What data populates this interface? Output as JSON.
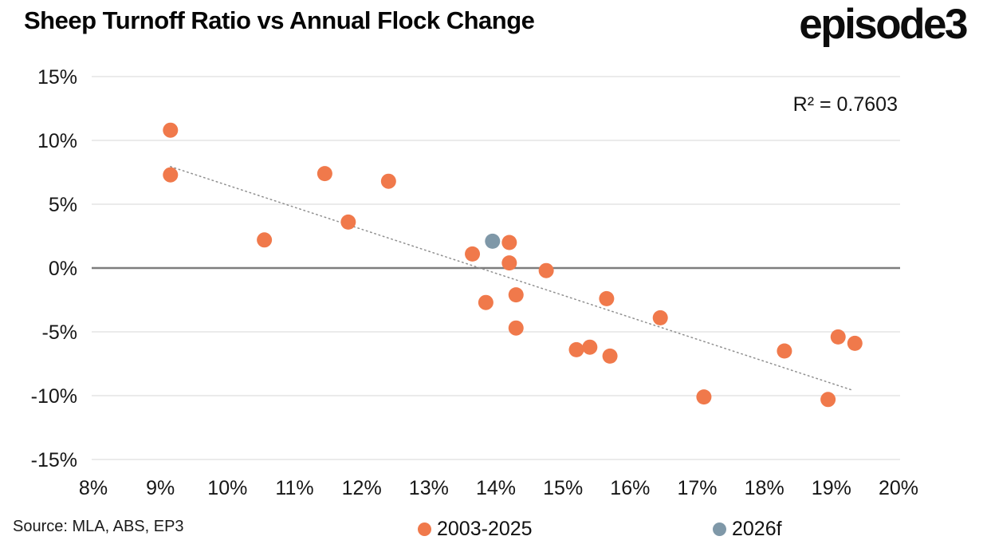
{
  "header": {
    "title": "Sheep Turnoff Ratio vs Annual Flock Change",
    "logo": "episode3"
  },
  "annotation": {
    "r_squared": "R² = 0.7603"
  },
  "source": {
    "text": "Source: MLA, ABS, EP3"
  },
  "legend": [
    {
      "label": "2003-2025",
      "color": "#F0794B"
    },
    {
      "label": "2026f",
      "color": "#7F98A8"
    }
  ],
  "colors": {
    "orange": "#F0794B",
    "slate_blue": "#7F98A8",
    "gridline": "#ebebeb",
    "zero_line": "#7d7d7d",
    "trendline": "#8f8f8f"
  },
  "chart_data": {
    "type": "scatter",
    "title": "Sheep Turnoff Ratio vs Annual Flock Change",
    "xlabel": "",
    "ylabel": "",
    "xlim": [
      8,
      20
    ],
    "ylim": [
      -15,
      15
    ],
    "grid": "horizontal-only",
    "legend_position": "bottom",
    "x_ticks": [
      {
        "v": 8,
        "label": "8%"
      },
      {
        "v": 9,
        "label": "9%"
      },
      {
        "v": 10,
        "label": "10%"
      },
      {
        "v": 11,
        "label": "11%"
      },
      {
        "v": 12,
        "label": "12%"
      },
      {
        "v": 13,
        "label": "13%"
      },
      {
        "v": 14,
        "label": "14%"
      },
      {
        "v": 15,
        "label": "15%"
      },
      {
        "v": 16,
        "label": "16%"
      },
      {
        "v": 17,
        "label": "17%"
      },
      {
        "v": 18,
        "label": "18%"
      },
      {
        "v": 19,
        "label": "19%"
      },
      {
        "v": 20,
        "label": "20%"
      }
    ],
    "y_ticks": [
      {
        "v": 15,
        "label": "15%"
      },
      {
        "v": 10,
        "label": "10%"
      },
      {
        "v": 5,
        "label": "5%"
      },
      {
        "v": 0,
        "label": "0%"
      },
      {
        "v": -5,
        "label": "-5%"
      },
      {
        "v": -10,
        "label": "-10%"
      },
      {
        "v": -15,
        "label": "-15%"
      }
    ],
    "series": [
      {
        "name": "2003-2025",
        "color": "#F0794B",
        "points": [
          [
            9.15,
            10.8
          ],
          [
            9.15,
            7.3
          ],
          [
            10.55,
            2.2
          ],
          [
            11.45,
            7.4
          ],
          [
            11.8,
            3.6
          ],
          [
            12.4,
            6.8
          ],
          [
            13.65,
            1.1
          ],
          [
            13.85,
            -2.7
          ],
          [
            14.2,
            2.0
          ],
          [
            14.2,
            0.4
          ],
          [
            14.3,
            -2.1
          ],
          [
            14.3,
            -4.7
          ],
          [
            14.75,
            -0.2
          ],
          [
            15.2,
            -6.4
          ],
          [
            15.4,
            -6.2
          ],
          [
            15.65,
            -2.4
          ],
          [
            15.7,
            -6.9
          ],
          [
            16.45,
            -3.9
          ],
          [
            17.1,
            -10.1
          ],
          [
            18.3,
            -6.5
          ],
          [
            18.95,
            -10.3
          ],
          [
            19.1,
            -5.4
          ],
          [
            19.35,
            -5.9
          ]
        ]
      },
      {
        "name": "2026f",
        "color": "#7F98A8",
        "points": [
          [
            13.95,
            2.1
          ]
        ]
      }
    ],
    "trendline": {
      "style": "dotted",
      "x1": 9.15,
      "y1": 7.95,
      "x2": 19.33,
      "y2": -9.6,
      "r_squared": "R² = 0.7603"
    }
  }
}
